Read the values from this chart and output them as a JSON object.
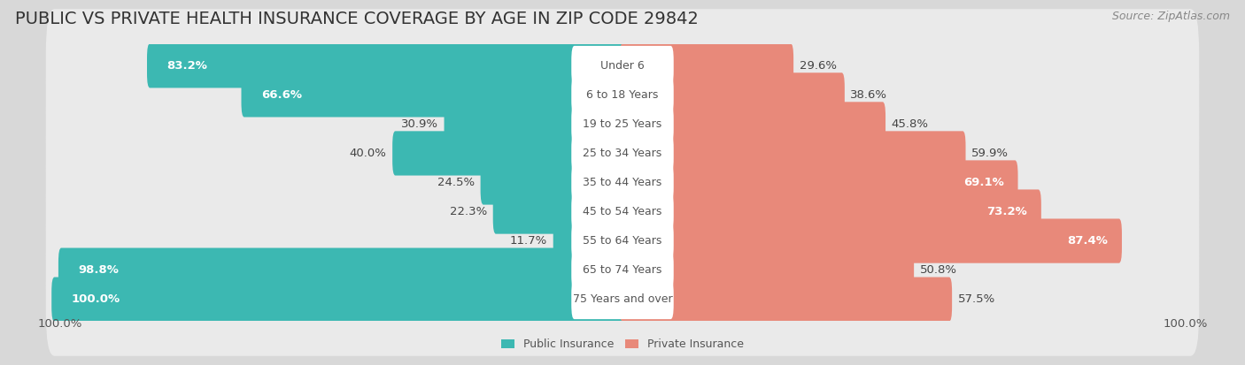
{
  "title": "PUBLIC VS PRIVATE HEALTH INSURANCE COVERAGE BY AGE IN ZIP CODE 29842",
  "source": "Source: ZipAtlas.com",
  "categories": [
    "Under 6",
    "6 to 18 Years",
    "19 to 25 Years",
    "25 to 34 Years",
    "35 to 44 Years",
    "45 to 54 Years",
    "55 to 64 Years",
    "65 to 74 Years",
    "75 Years and over"
  ],
  "public_values": [
    83.2,
    66.6,
    30.9,
    40.0,
    24.5,
    22.3,
    11.7,
    98.8,
    100.0
  ],
  "private_values": [
    29.6,
    38.6,
    45.8,
    59.9,
    69.1,
    73.2,
    87.4,
    50.8,
    57.5
  ],
  "public_color": "#3cb8b2",
  "private_color": "#e8897a",
  "background_color": "#d8d8d8",
  "row_background": "#f0f0f0",
  "bar_bg_color": "#e0e0e0",
  "max_value": 100.0,
  "title_fontsize": 14,
  "label_fontsize": 9.5,
  "category_fontsize": 9,
  "legend_fontsize": 9,
  "source_fontsize": 9,
  "x_axis_label_left": "100.0%",
  "x_axis_label_right": "100.0%"
}
